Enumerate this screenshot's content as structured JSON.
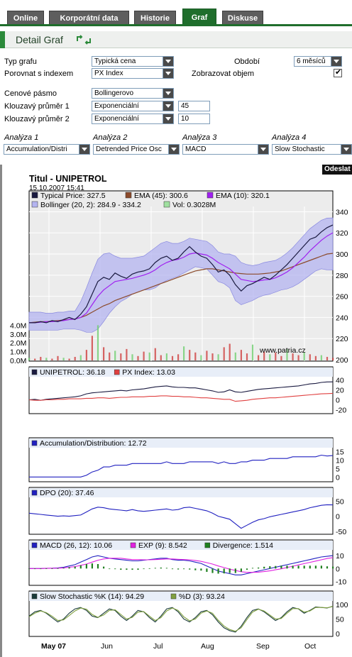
{
  "tabs": [
    {
      "label": "Online",
      "active": false
    },
    {
      "label": "Korporátní data",
      "active": false
    },
    {
      "label": "Historie",
      "active": false
    },
    {
      "label": "Graf",
      "active": true
    },
    {
      "label": "Diskuse",
      "active": false
    }
  ],
  "header": {
    "title": "Detail Graf"
  },
  "form": {
    "typ_grafu": {
      "label": "Typ grafu",
      "value": "Typická cena"
    },
    "obdobi": {
      "label": "Období",
      "value": "6 měsíců"
    },
    "porovnat": {
      "label": "Porovnat s indexem",
      "value": "PX Index"
    },
    "zobrazovat": {
      "label": "Zobrazovat objem",
      "checked": true
    },
    "cenove_pasmo": {
      "label": "Cenové pásmo",
      "value": "Bollingerovo"
    },
    "kp1": {
      "label": "Klouzavý průměr 1",
      "value": "Exponenciální",
      "period": "45"
    },
    "kp2": {
      "label": "Klouzavý průměr 2",
      "value": "Exponenciální",
      "period": "10"
    },
    "analyses": [
      {
        "label": "Analýza 1",
        "value": "Accumulation/Distri"
      },
      {
        "label": "Analýza 2",
        "value": "Detrended Price Osc"
      },
      {
        "label": "Analýza 3",
        "value": "MACD"
      },
      {
        "label": "Analýza 4",
        "value": "Slow Stochastic"
      }
    ]
  },
  "submit_label": "Odeslat",
  "colors": {
    "accent": "#1f6e2c",
    "tab_inactive": "#5e5e5e",
    "band": "#b4b4f0",
    "price": "#1a1a40",
    "ema45": "#8b4a2b",
    "ema10": "#a020f0",
    "volume": "#d04040",
    "px": "#e04040",
    "ad": "#2020c0",
    "macd": "#2020c0",
    "exp": "#e020e0",
    "div": "#208020",
    "stochK": "#1a3a3a",
    "stochD": "#80a040"
  },
  "chart_data": [
    {
      "type": "line",
      "title": "Titul - UNIPETROL",
      "subtitle": "15.10.2007 15:41",
      "watermark": "www.patria.cz",
      "legend": [
        "Typical Price: 327.5",
        "EMA (45): 300.6",
        "EMA (10): 320.1",
        "Bollinger (20, 2): 284.9 - 334.2",
        "Vol: 0.3028M"
      ],
      "y_ticks": [
        "340",
        "320",
        "300",
        "280",
        "260",
        "240",
        "220",
        "200"
      ],
      "vol_ticks": [
        "4.0M",
        "3.0M",
        "2.0M",
        "1.0M",
        "0.0M"
      ],
      "ylim": [
        200,
        345
      ],
      "x_labels": [
        "May 07",
        "Jun",
        "Jul",
        "Aug",
        "Sep",
        "Oct"
      ],
      "series": [
        {
          "name": "Typical Price",
          "values": [
            235,
            235,
            236,
            235,
            237,
            236,
            238,
            240,
            238,
            243,
            250,
            262,
            274,
            278,
            276,
            282,
            279,
            277,
            281,
            283,
            284,
            286,
            292,
            296,
            298,
            294,
            296,
            302,
            307,
            302,
            298,
            296,
            290,
            283,
            285,
            280,
            271,
            265,
            270,
            272,
            275,
            278,
            276,
            280,
            285,
            290,
            296,
            302,
            308,
            314,
            316,
            321,
            325,
            327.5
          ]
        },
        {
          "name": "EMA (45)",
          "values": [
            235,
            235.5,
            236,
            236,
            236.5,
            237,
            237.5,
            238,
            238.5,
            240,
            242,
            245,
            248,
            251,
            253,
            256,
            258,
            260,
            262,
            264,
            266,
            268,
            270,
            272,
            274,
            276,
            278,
            280,
            282,
            284,
            285,
            286,
            286,
            285,
            284,
            283,
            282,
            281.5,
            281,
            281,
            281,
            281.5,
            282,
            283,
            284,
            286,
            288,
            290,
            292,
            294,
            296,
            298,
            300,
            300.6
          ]
        },
        {
          "name": "EMA (10)",
          "values": [
            235,
            235,
            235.5,
            236,
            236,
            236.5,
            237,
            238,
            238.5,
            240,
            244,
            252,
            260,
            266,
            270,
            274,
            275,
            276,
            277,
            278.5,
            280,
            282,
            285,
            289,
            292,
            294,
            295,
            297,
            300,
            301,
            300,
            299,
            296,
            292,
            289,
            286,
            281,
            276,
            275,
            274,
            274.5,
            275.5,
            276,
            277.5,
            280,
            283,
            287,
            292,
            297,
            303,
            308,
            313,
            317,
            320.1
          ]
        },
        {
          "name": "Bollinger upper",
          "values": [
            245,
            245,
            245,
            244,
            244,
            245,
            245,
            246,
            246,
            255,
            268,
            282,
            295,
            300,
            301,
            298,
            296,
            296,
            296,
            297,
            298,
            302,
            306,
            310,
            312,
            310,
            310,
            312,
            315,
            314,
            313,
            312,
            308,
            302,
            300,
            300,
            298,
            292,
            290,
            289,
            290,
            292,
            293,
            294,
            297,
            301,
            306,
            312,
            318,
            324,
            328,
            332,
            334,
            334.2
          ]
        },
        {
          "name": "Bollinger lower",
          "values": [
            228,
            228,
            228,
            228,
            228,
            228,
            229,
            229,
            229,
            228,
            226,
            226,
            229,
            236,
            244,
            250,
            255,
            258,
            262,
            264,
            266,
            266,
            268,
            272,
            275,
            277,
            279,
            282,
            285,
            288,
            287,
            286,
            280,
            274,
            272,
            268,
            256,
            252,
            254,
            256,
            259,
            261,
            262,
            264,
            266,
            267,
            269,
            272,
            276,
            280,
            284,
            286,
            285,
            284.9
          ]
        },
        {
          "name": "Volume (M)",
          "values": [
            0.3,
            0.2,
            0.4,
            0.3,
            0.2,
            0.5,
            0.3,
            0.2,
            0.4,
            0.6,
            1.2,
            2.8,
            4.0,
            1.5,
            0.9,
            1.1,
            0.8,
            1.3,
            0.7,
            0.5,
            1.0,
            0.9,
            1.4,
            0.6,
            0.8,
            0.5,
            0.7,
            1.6,
            1.2,
            0.9,
            0.6,
            1.1,
            0.8,
            0.7,
            1.5,
            1.9,
            0.9,
            1.2,
            0.8,
            1.8,
            0.6,
            1.0,
            0.7,
            0.9,
            0.5,
            1.3,
            0.8,
            0.6,
            0.9,
            0.7,
            0.5,
            0.6,
            0.4,
            0.3
          ]
        }
      ]
    },
    {
      "type": "line",
      "legend": [
        "UNIPETROL: 36.18",
        "PX Index: 13.03"
      ],
      "y_ticks": [
        "40",
        "20",
        "0",
        "-20"
      ],
      "ylim": [
        -25,
        45
      ],
      "series": [
        {
          "name": "UNIPETROL",
          "values": [
            0,
            1,
            -1,
            1,
            2,
            3,
            4,
            5,
            6,
            8,
            12,
            14,
            15,
            16,
            17,
            18,
            19,
            18,
            20,
            21,
            22,
            24,
            26,
            27,
            28,
            26,
            25,
            25,
            24,
            24,
            22,
            20,
            18,
            15,
            16,
            20,
            16,
            15,
            17,
            19,
            21,
            22,
            23,
            24,
            25,
            26,
            27,
            28,
            30,
            32,
            33,
            35,
            36,
            36.18
          ]
        },
        {
          "name": "PX Index",
          "values": [
            0,
            -1,
            -1,
            0,
            0,
            1,
            1,
            2,
            2,
            2,
            3,
            3,
            4,
            4,
            3,
            4,
            5,
            5,
            6,
            6,
            6,
            7,
            7,
            8,
            8,
            7,
            7,
            6,
            6,
            5,
            4,
            4,
            3,
            2,
            1,
            1,
            -3,
            -2,
            -1,
            1,
            2,
            3,
            4,
            4,
            5,
            6,
            7,
            8,
            9,
            10,
            11,
            12,
            12.5,
            13.03
          ]
        }
      ]
    },
    {
      "type": "line",
      "legend": [
        "Accumulation/Distribution: 12.72"
      ],
      "y_ticks": [
        "15",
        "10",
        "5",
        "0"
      ],
      "ylim": [
        -2,
        17
      ],
      "series": [
        {
          "name": "Accumulation/Distribution",
          "values": [
            0,
            0,
            0,
            0,
            0,
            0,
            0,
            0,
            0,
            0,
            1,
            3,
            4,
            6,
            6,
            7,
            7,
            7,
            8,
            8,
            8,
            8,
            8,
            8,
            9,
            8,
            8,
            8,
            9,
            9,
            9,
            9,
            9,
            8,
            9,
            8,
            8,
            9,
            9,
            10,
            10,
            10,
            11,
            11,
            11,
            11,
            12,
            12,
            12,
            12,
            12,
            13,
            12.5,
            12.72
          ]
        }
      ]
    },
    {
      "type": "line",
      "legend": [
        "DPO (20): 37.46"
      ],
      "y_ticks": [
        "50",
        "0",
        "-50"
      ],
      "ylim": [
        -55,
        60
      ],
      "series": [
        {
          "name": "DPO (20)",
          "values": [
            10,
            8,
            6,
            4,
            2,
            0,
            1,
            0,
            2,
            4,
            14,
            24,
            30,
            28,
            24,
            22,
            20,
            18,
            22,
            18,
            16,
            18,
            20,
            22,
            24,
            20,
            22,
            28,
            30,
            26,
            22,
            18,
            10,
            0,
            -5,
            -10,
            -25,
            -40,
            -30,
            -20,
            -12,
            -8,
            -2,
            2,
            6,
            10,
            14,
            18,
            22,
            28,
            32,
            36,
            38,
            37.46
          ]
        }
      ]
    },
    {
      "type": "line",
      "legend": [
        "MACD (26, 12): 10.06",
        "EXP (9): 8.542",
        "Divergence: 1.514"
      ],
      "y_ticks": [
        "10",
        "0",
        "-10"
      ],
      "ylim": [
        -12,
        14
      ],
      "series": [
        {
          "name": "MACD (26, 12)",
          "values": [
            0,
            0,
            0,
            0.2,
            0.3,
            0.5,
            1,
            2,
            3,
            5,
            7,
            9,
            10,
            9,
            8,
            7.5,
            7,
            6.5,
            6,
            6,
            6.5,
            7,
            7.5,
            8,
            8,
            7,
            6.5,
            6.5,
            6,
            5,
            4,
            2,
            0,
            -2,
            -3,
            -4,
            -5,
            -5,
            -4,
            -3,
            -2,
            -1,
            0,
            1,
            2,
            3,
            4,
            5,
            6,
            7,
            8,
            9,
            9.5,
            10.06
          ]
        },
        {
          "name": "EXP (9)",
          "values": [
            0,
            0,
            0,
            0.1,
            0.2,
            0.3,
            0.5,
            1,
            1.5,
            2.5,
            3.5,
            5,
            6.5,
            7.5,
            8,
            8,
            8,
            7.5,
            7,
            7,
            6.8,
            6.8,
            7,
            7.2,
            7.5,
            7.5,
            7.2,
            7,
            6.8,
            6.3,
            5.6,
            4.6,
            3.5,
            2,
            0.8,
            -0.5,
            -1.5,
            -2.5,
            -3,
            -3,
            -2.8,
            -2.4,
            -1.8,
            -1,
            -0.2,
            0.8,
            1.8,
            2.8,
            3.8,
            4.8,
            5.8,
            6.8,
            7.8,
            8.542
          ]
        },
        {
          "name": "Divergence",
          "values": [
            0,
            0,
            0,
            0.1,
            0.1,
            0.2,
            0.5,
            1,
            1.5,
            2.5,
            3.5,
            4,
            3.5,
            1.5,
            0,
            -0.5,
            -1,
            -1,
            -1,
            -1,
            -0.3,
            0.2,
            0.5,
            0.8,
            0.5,
            -0.5,
            -0.7,
            -0.5,
            -0.8,
            -1.3,
            -1.6,
            -2.6,
            -3.5,
            -4,
            -3.8,
            -3.5,
            -3.5,
            -2.5,
            -1,
            0.5,
            0.8,
            1.4,
            1.8,
            2,
            2.2,
            2.2,
            2.2,
            2.2,
            2.2,
            2.2,
            2.2,
            2.2,
            1.7,
            1.514
          ]
        }
      ]
    },
    {
      "type": "line",
      "legend": [
        "Slow Stochastic %K (14): 94.29",
        "%D (3): 93.24"
      ],
      "y_ticks": [
        "100",
        "50",
        "0"
      ],
      "ylim": [
        -5,
        110
      ],
      "series": [
        {
          "name": "Slow Stochastic %K (14)",
          "values": [
            60,
            75,
            80,
            70,
            55,
            40,
            50,
            70,
            85,
            90,
            80,
            60,
            55,
            70,
            85,
            80,
            60,
            45,
            60,
            80,
            75,
            55,
            40,
            60,
            85,
            90,
            75,
            50,
            40,
            55,
            75,
            80,
            65,
            40,
            20,
            10,
            5,
            25,
            55,
            80,
            85,
            75,
            60,
            45,
            55,
            75,
            90,
            85,
            70,
            80,
            92,
            90,
            88,
            94.29
          ]
        },
        {
          "name": "%D (3)",
          "values": [
            58,
            70,
            78,
            72,
            60,
            45,
            47,
            62,
            78,
            88,
            84,
            66,
            56,
            64,
            80,
            82,
            66,
            50,
            56,
            74,
            76,
            60,
            45,
            55,
            78,
            88,
            80,
            58,
            44,
            50,
            70,
            78,
            70,
            46,
            26,
            14,
            8,
            20,
            48,
            74,
            84,
            78,
            64,
            50,
            52,
            70,
            86,
            86,
            74,
            78,
            90,
            90,
            89,
            93.24
          ]
        }
      ]
    }
  ]
}
